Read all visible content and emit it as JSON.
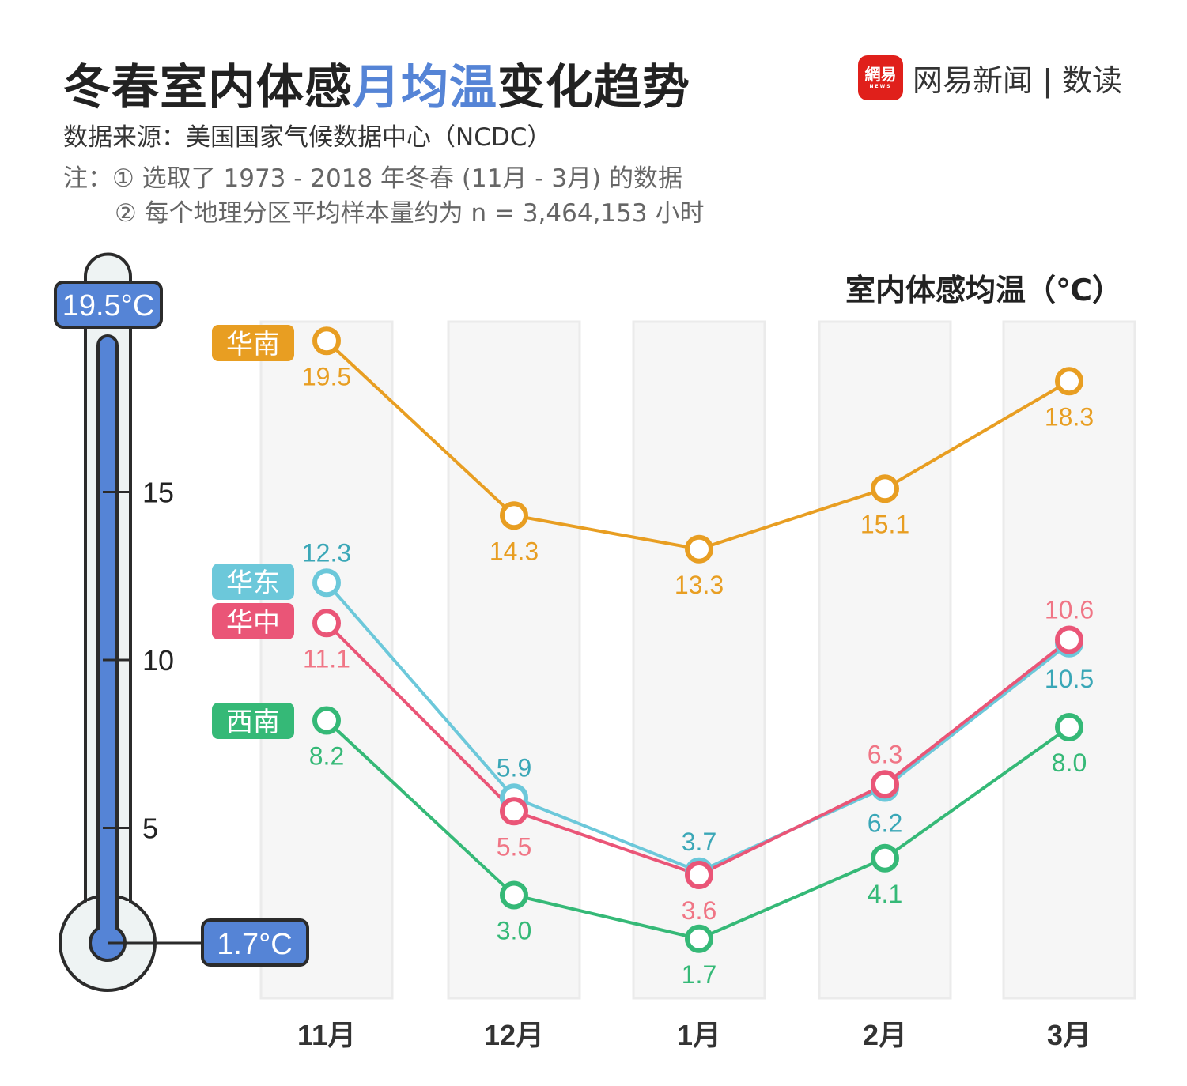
{
  "header": {
    "title_pre": "冬春室内体感",
    "title_highlight": "月均温",
    "title_post": "变化趋势",
    "source": "数据来源：美国国家气候数据中心（NCDC）",
    "note1": "注：① 选取了 1973 - 2018 年冬春 (11月 - 3月) 的数据",
    "note2": "② 每个地理分区平均样本量约为 n = 3,464,153 小时",
    "logo_badge": "網易",
    "logo_badge_sub": "NEWS",
    "logo_text": "网易新闻 | 数读"
  },
  "chart_data": {
    "type": "line",
    "ylabel": "室内体感均温（℃）",
    "categories": [
      "11月",
      "12月",
      "1月",
      "2月",
      "3月"
    ],
    "yticks": [
      "5",
      "10",
      "15"
    ],
    "ylim": [
      1.7,
      19.5
    ],
    "max_label": "19.5°C",
    "min_label": "1.7°C",
    "grid": false,
    "series": [
      {
        "name": "华南",
        "color": "#E89E22",
        "label_color": "#E89E22",
        "values": [
          19.5,
          14.3,
          13.3,
          15.1,
          18.3
        ]
      },
      {
        "name": "华东",
        "color": "#6CC8DA",
        "label_color": "#3AA7B7",
        "values": [
          12.3,
          5.9,
          3.7,
          6.2,
          10.5
        ]
      },
      {
        "name": "华中",
        "color": "#EA5577",
        "label_color": "#F07585",
        "values": [
          11.1,
          5.5,
          3.6,
          6.3,
          10.6
        ]
      },
      {
        "name": "西南",
        "color": "#35B977",
        "label_color": "#35B977",
        "values": [
          8.2,
          3.0,
          1.7,
          4.1,
          8.0
        ]
      }
    ],
    "thermometer_color": "#5584D6"
  }
}
